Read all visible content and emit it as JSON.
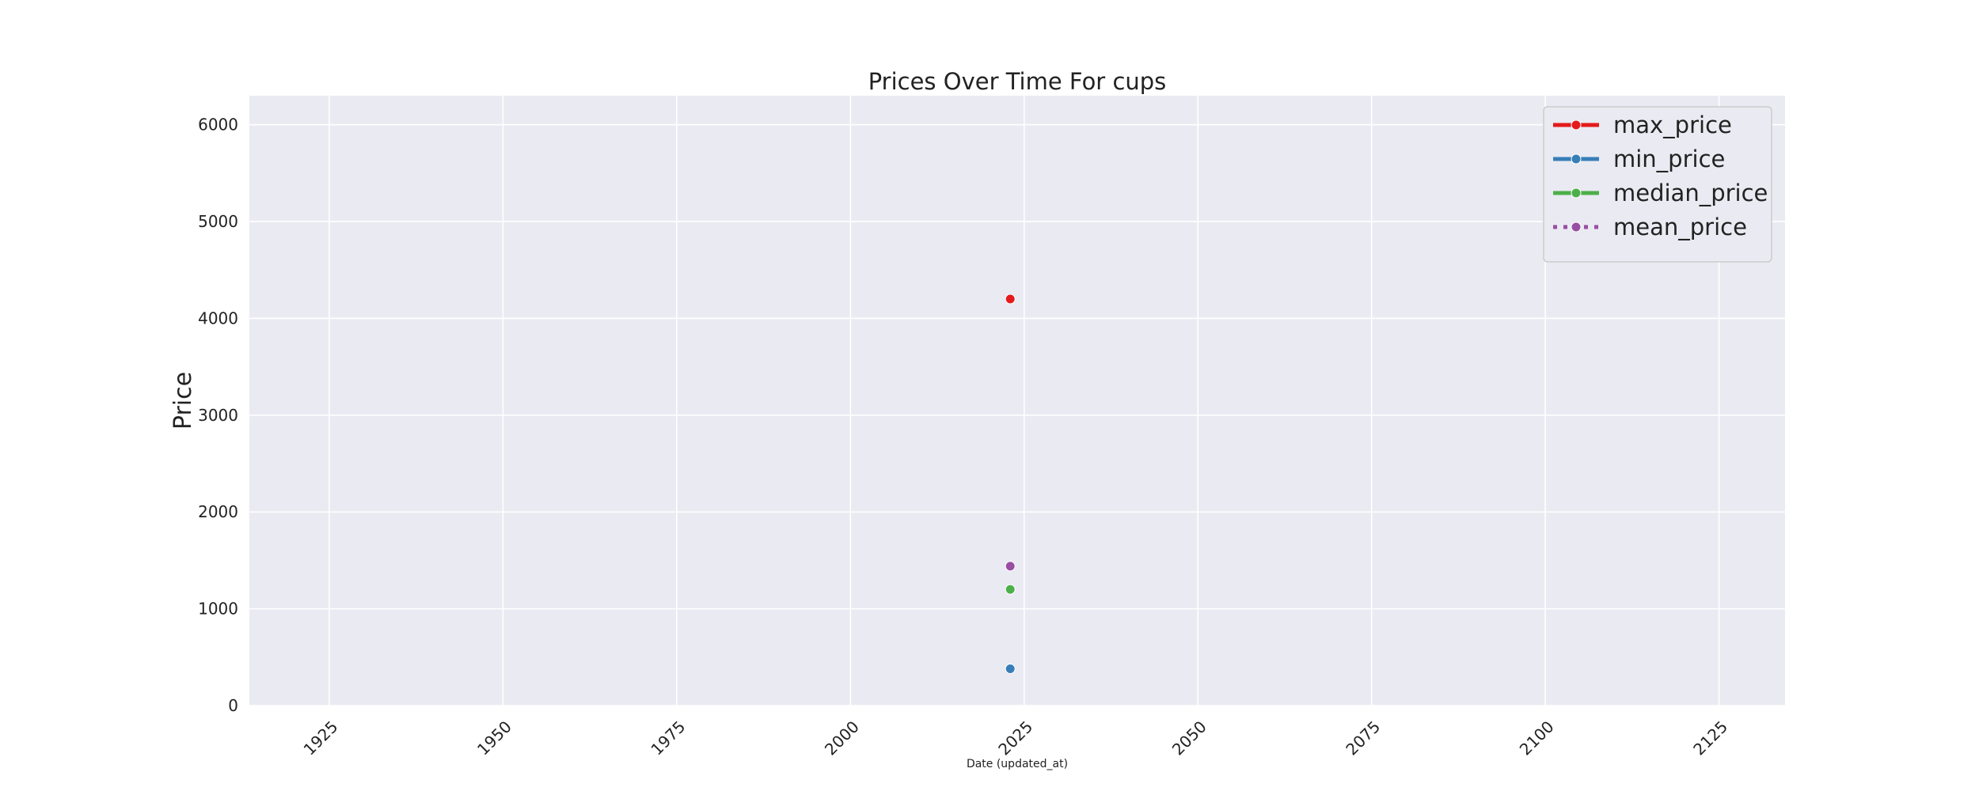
{
  "chart_data": {
    "type": "line",
    "title": "Prices Over Time For cups",
    "xlabel": "Date (updated_at)",
    "ylabel": "Price",
    "xlim": [
      1913.5,
      2134.5
    ],
    "ylim": [
      0,
      6300
    ],
    "xticks": [
      1925,
      1950,
      1975,
      2000,
      2025,
      2050,
      2075,
      2100,
      2125
    ],
    "yticks": [
      0,
      1000,
      2000,
      3000,
      4000,
      5000,
      6000
    ],
    "grid": true,
    "legend_position": "top-right",
    "series": [
      {
        "name": "max_price",
        "color": "#e41a1c",
        "dash": "solid",
        "points": [
          {
            "x": 2023,
            "y": 4200
          }
        ]
      },
      {
        "name": "min_price",
        "color": "#377eb8",
        "dash": "solid",
        "points": [
          {
            "x": 2023,
            "y": 380
          }
        ]
      },
      {
        "name": "median_price",
        "color": "#4daf4a",
        "dash": "solid",
        "points": [
          {
            "x": 2023,
            "y": 1200
          }
        ]
      },
      {
        "name": "mean_price",
        "color": "#984ea3",
        "dash": "dotted",
        "points": [
          {
            "x": 2023,
            "y": 1440
          }
        ]
      }
    ]
  }
}
